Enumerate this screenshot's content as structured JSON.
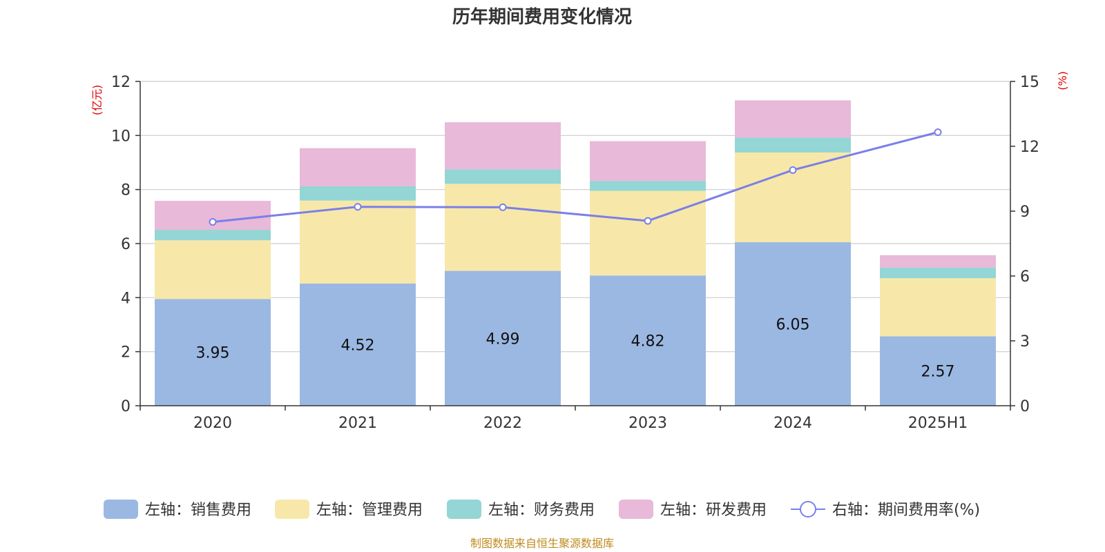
{
  "chart_data": {
    "type": "bar",
    "stacked": true,
    "title": "历年期间费用变化情况",
    "categories": [
      "2020",
      "2021",
      "2022",
      "2023",
      "2024",
      "2025H1"
    ],
    "left_axis": {
      "unit": "(亿元)",
      "ylim": [
        0,
        12
      ],
      "ticks": [
        "0",
        "2",
        "4",
        "6",
        "8",
        "10",
        "12"
      ]
    },
    "right_axis": {
      "unit": "(%)",
      "ylim": [
        0,
        15
      ],
      "ticks": [
        "0",
        "3",
        "6",
        "9",
        "12",
        "15"
      ]
    },
    "grid": true,
    "legend_position": "bottom",
    "series": [
      {
        "name": "左轴：销售费用",
        "type": "bar",
        "axis": "left",
        "color": "#9bb8e2",
        "values": [
          3.95,
          4.52,
          4.99,
          4.82,
          6.05,
          2.57
        ],
        "labels": [
          "3.95",
          "4.52",
          "4.99",
          "4.82",
          "6.05",
          "2.57"
        ]
      },
      {
        "name": "左轴：管理费用",
        "type": "bar",
        "axis": "left",
        "color": "#f7e8a9",
        "values": [
          2.17,
          3.07,
          3.22,
          3.13,
          3.32,
          2.15
        ]
      },
      {
        "name": "左轴：财务费用",
        "type": "bar",
        "axis": "left",
        "color": "#94d5d5",
        "values": [
          0.39,
          0.53,
          0.54,
          0.37,
          0.55,
          0.39
        ]
      },
      {
        "name": "左轴：研发费用",
        "type": "bar",
        "axis": "left",
        "color": "#e8b9d9",
        "values": [
          1.07,
          1.41,
          1.74,
          1.47,
          1.38,
          0.46
        ]
      },
      {
        "name": "右轴：期间费用率(%)",
        "type": "line",
        "axis": "right",
        "color": "#7b7fe8",
        "values": [
          8.5,
          9.2,
          9.18,
          8.55,
          10.9,
          12.65
        ]
      }
    ]
  },
  "footer": {
    "source": "制图数据来自恒生聚源数据库"
  }
}
